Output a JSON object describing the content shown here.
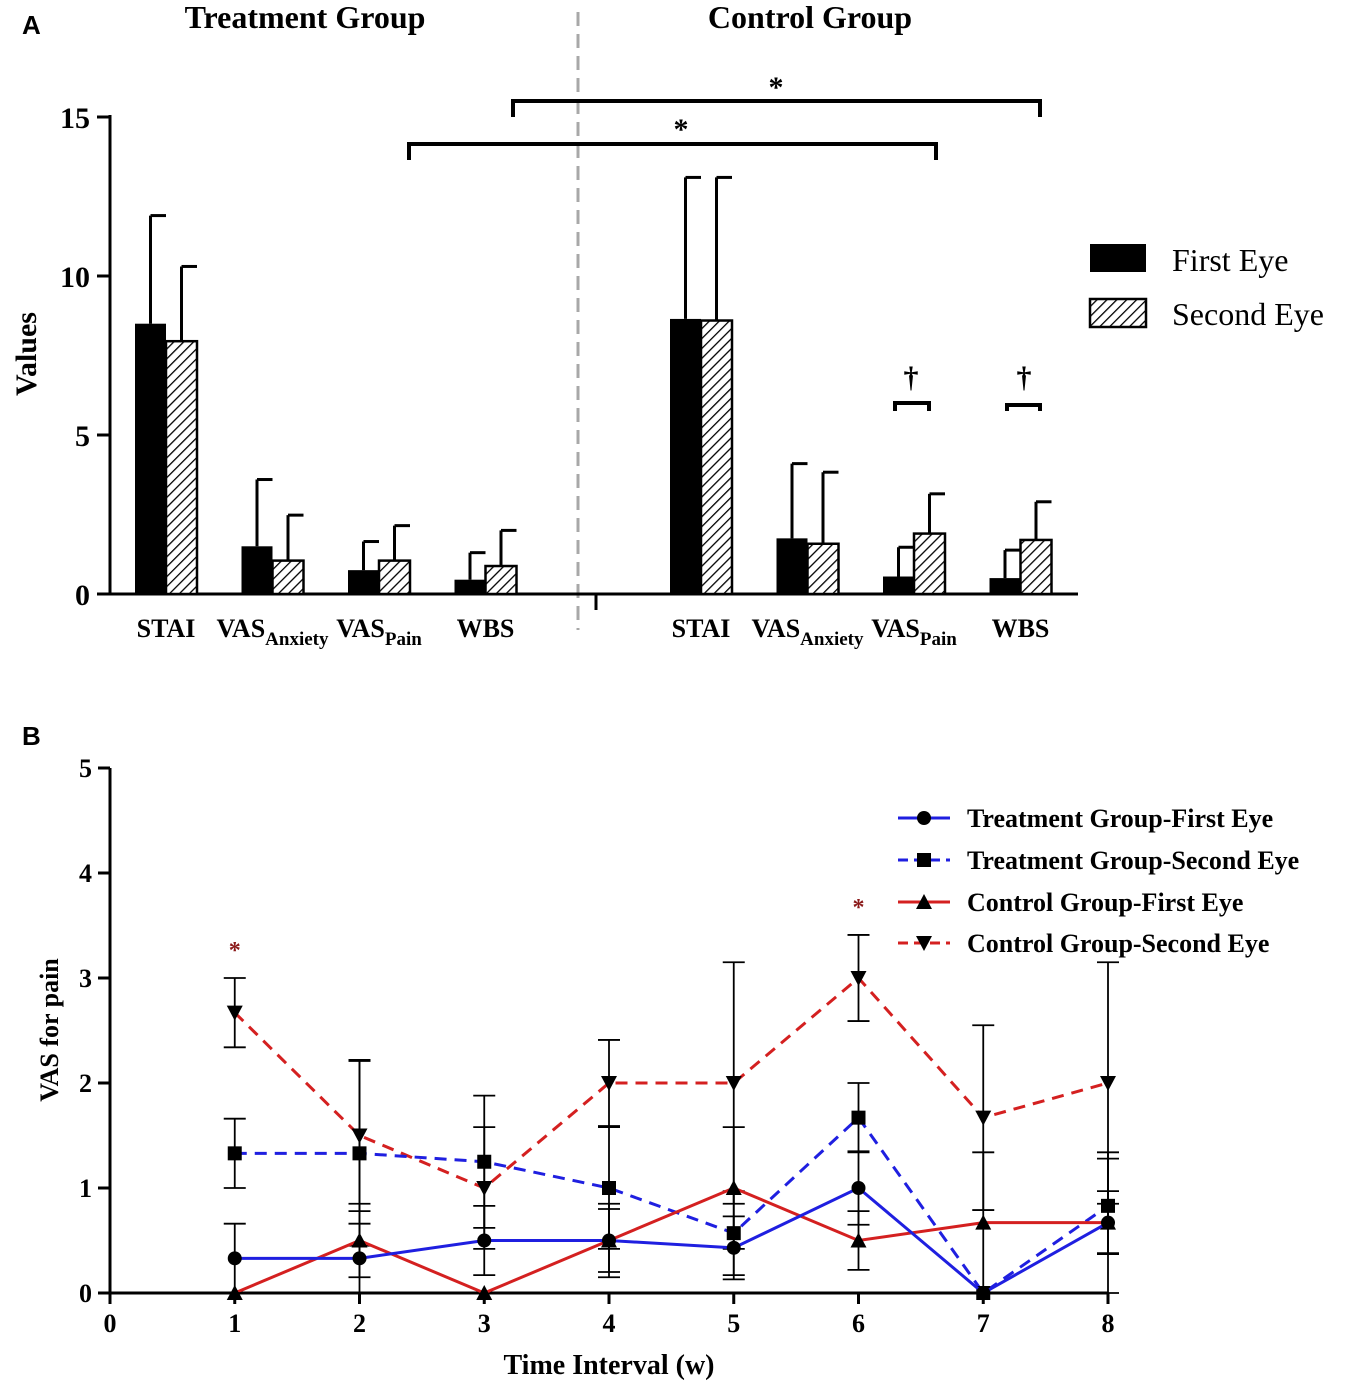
{
  "panel_a_label": "A",
  "panel_b_label": "B",
  "chart_data": [
    {
      "type": "bar",
      "panel": "A",
      "ylabel": "Values",
      "ylim": [
        0,
        15
      ],
      "yticks": [
        "0",
        "5",
        "10",
        "15"
      ],
      "group_titles": [
        "Treatment Group",
        "Control Group"
      ],
      "legend": [
        "First Eye",
        "Second Eye"
      ],
      "legend_position": "right",
      "groups": [
        {
          "name": "Treatment Group",
          "categories": [
            {
              "main": "STAI",
              "sub": ""
            },
            {
              "main": "VAS",
              "sub": "Anxiety"
            },
            {
              "main": "VAS",
              "sub": "Pain"
            },
            {
              "main": "WBS",
              "sub": ""
            }
          ],
          "series": [
            {
              "name": "First Eye",
              "values": [
                8.5,
                1.5,
                0.75,
                0.45
              ],
              "errors": [
                3.4,
                2.1,
                0.9,
                0.85
              ]
            },
            {
              "name": "Second Eye",
              "values": [
                7.95,
                1.05,
                1.05,
                0.88
              ],
              "errors": [
                2.35,
                1.43,
                1.1,
                1.12
              ]
            }
          ]
        },
        {
          "name": "Control Group",
          "categories": [
            {
              "main": "STAI",
              "sub": ""
            },
            {
              "main": "VAS",
              "sub": "Anxiety"
            },
            {
              "main": "VAS",
              "sub": "Pain"
            },
            {
              "main": "WBS",
              "sub": ""
            }
          ],
          "series": [
            {
              "name": "First Eye",
              "values": [
                8.65,
                1.75,
                0.55,
                0.5
              ],
              "errors": [
                4.45,
                2.35,
                0.92,
                0.88
              ]
            },
            {
              "name": "Second Eye",
              "values": [
                8.6,
                1.58,
                1.9,
                1.7
              ],
              "errors": [
                4.5,
                2.25,
                1.25,
                1.2
              ]
            }
          ]
        }
      ],
      "annotations": {
        "star": "*",
        "dagger": "†"
      }
    },
    {
      "type": "line",
      "panel": "B",
      "xlabel": "Time Interval (w)",
      "ylabel": "VAS for pain",
      "xlim": [
        0,
        8
      ],
      "ylim": [
        0,
        5
      ],
      "xticks": [
        "0",
        "1",
        "2",
        "3",
        "4",
        "5",
        "6",
        "7",
        "8"
      ],
      "yticks": [
        "0",
        "1",
        "2",
        "3",
        "4",
        "5"
      ],
      "x": [
        1,
        2,
        3,
        4,
        5,
        6,
        7,
        8
      ],
      "legend_position": "top-right",
      "series": [
        {
          "name": "Treatment Group-First Eye",
          "color": "#1f1fe0",
          "dash": "solid",
          "marker": "circle",
          "values": [
            0.33,
            0.33,
            0.5,
            0.5,
            0.43,
            1.0,
            0.0,
            0.67
          ],
          "errors": [
            0.33,
            0.33,
            0.33,
            0.35,
            0.3,
            0.35,
            0,
            0.3
          ]
        },
        {
          "name": "Treatment Group-Second Eye",
          "color": "#1f1fe0",
          "dash": "dashed",
          "marker": "square",
          "values": [
            1.33,
            1.33,
            1.25,
            1.0,
            0.57,
            1.67,
            0.0,
            0.83
          ],
          "errors": [
            0.33,
            0.88,
            0.63,
            0.58,
            0.4,
            0.33,
            0,
            0.45
          ]
        },
        {
          "name": "Control Group-First Eye",
          "color": "#d42020",
          "dash": "solid",
          "marker": "triangle-up",
          "values": [
            0.0,
            0.5,
            0.0,
            0.5,
            1.0,
            0.5,
            0.67,
            0.67
          ],
          "errors": [
            0,
            0.35,
            0,
            0.3,
            0.58,
            0.28,
            0.67,
            0.67
          ]
        },
        {
          "name": "Control Group-Second Eye",
          "color": "#d42020",
          "dash": "dashed",
          "marker": "triangle-down",
          "values": [
            2.67,
            1.5,
            1.0,
            2.0,
            2.0,
            3.0,
            1.67,
            2.0
          ],
          "errors": [
            0.33,
            0.72,
            0.58,
            0.41,
            1.15,
            0.41,
            0.88,
            1.15
          ]
        }
      ],
      "significance": [
        {
          "x": 1,
          "label": "*"
        },
        {
          "x": 6,
          "label": "*"
        }
      ]
    }
  ]
}
